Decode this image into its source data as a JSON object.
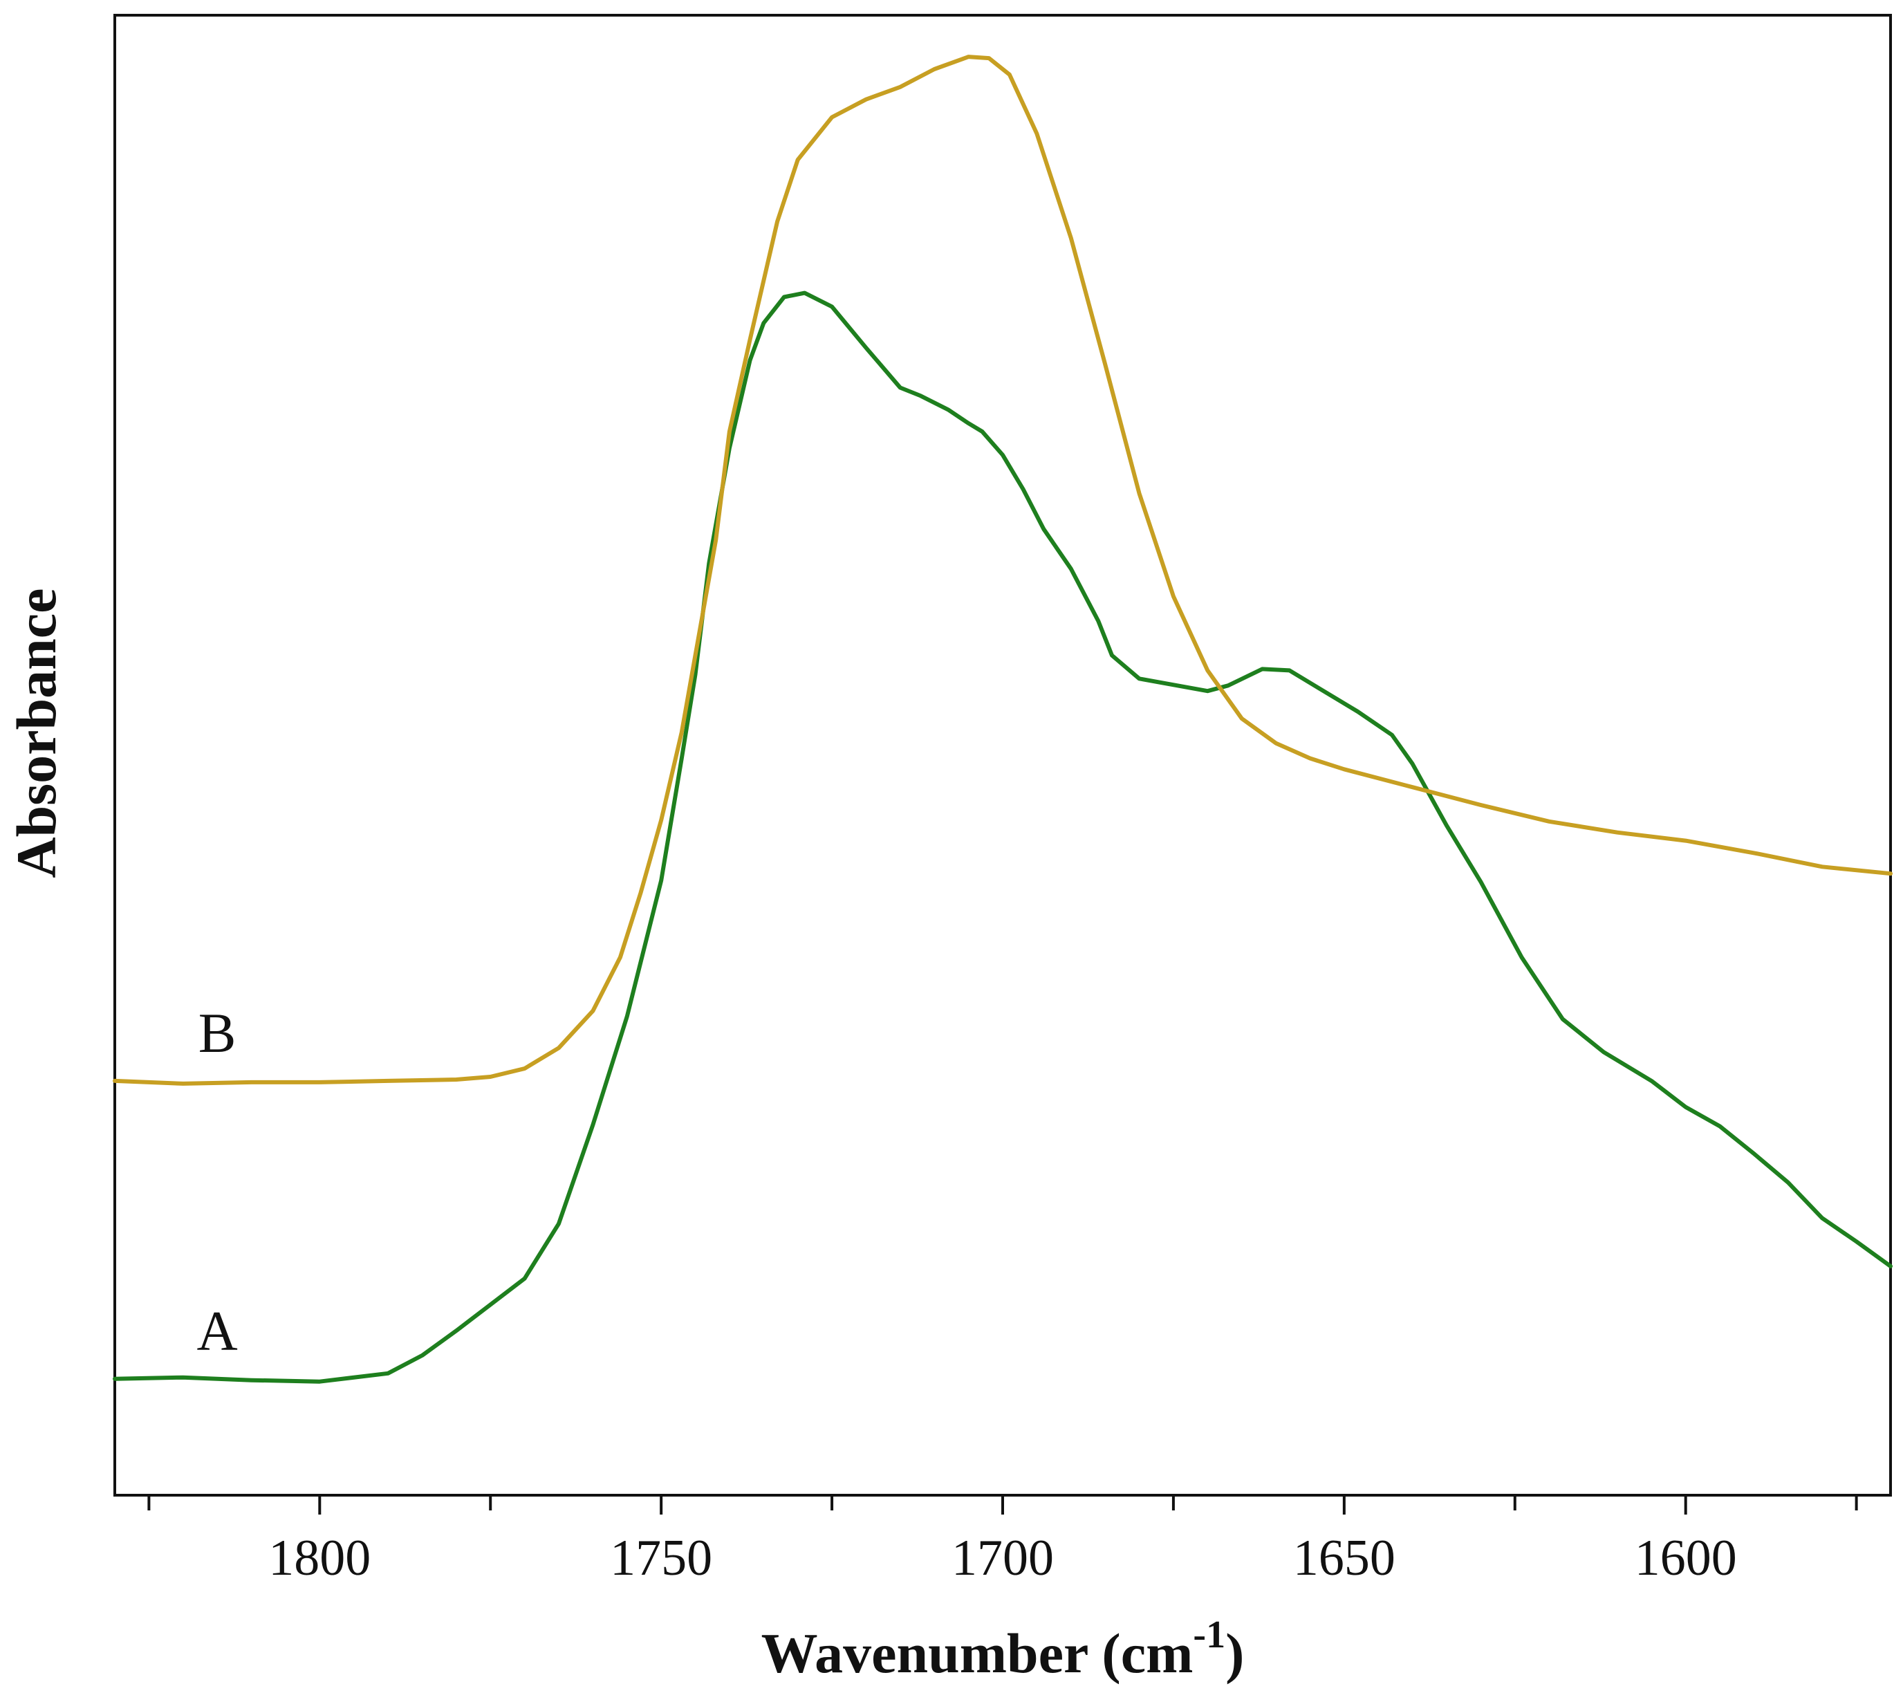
{
  "chart_data": {
    "type": "line",
    "xlabel": "Wavenumber (cm",
    "xlabel_superscript": "-1",
    "xlabel_suffix": ")",
    "ylabel": "Absorbance",
    "x_reversed": true,
    "xlim": [
      1830,
      1570
    ],
    "ylim": [
      0,
      1
    ],
    "y_ticks_labeled": false,
    "x_major_ticks": [
      1800,
      1750,
      1700,
      1650,
      1600
    ],
    "x_minor_ticks": [
      1825,
      1775,
      1725,
      1675,
      1625,
      1575
    ],
    "x_tick_labels": [
      "1800",
      "1750",
      "1700",
      "1650",
      "1600"
    ],
    "grid": false,
    "legend": "none",
    "series": [
      {
        "name": "A",
        "color": "#1e7f1e",
        "points": [
          [
            1830,
            0.046
          ],
          [
            1820,
            0.047
          ],
          [
            1810,
            0.045
          ],
          [
            1800,
            0.044
          ],
          [
            1790,
            0.05
          ],
          [
            1785,
            0.063
          ],
          [
            1780,
            0.081
          ],
          [
            1775,
            0.1
          ],
          [
            1770,
            0.119
          ],
          [
            1765,
            0.159
          ],
          [
            1760,
            0.231
          ],
          [
            1755,
            0.31
          ],
          [
            1750,
            0.409
          ],
          [
            1747,
            0.498
          ],
          [
            1745,
            0.559
          ],
          [
            1743,
            0.64
          ],
          [
            1740,
            0.724
          ],
          [
            1737,
            0.788
          ],
          [
            1735,
            0.815
          ],
          [
            1732,
            0.834
          ],
          [
            1729,
            0.837
          ],
          [
            1725,
            0.827
          ],
          [
            1720,
            0.797
          ],
          [
            1715,
            0.768
          ],
          [
            1712,
            0.762
          ],
          [
            1708,
            0.752
          ],
          [
            1705,
            0.742
          ],
          [
            1703,
            0.736
          ],
          [
            1700,
            0.719
          ],
          [
            1697,
            0.694
          ],
          [
            1694,
            0.665
          ],
          [
            1690,
            0.636
          ],
          [
            1686,
            0.598
          ],
          [
            1684,
            0.573
          ],
          [
            1680,
            0.556
          ],
          [
            1670,
            0.547
          ],
          [
            1667,
            0.551
          ],
          [
            1662,
            0.563
          ],
          [
            1658,
            0.562
          ],
          [
            1654,
            0.55
          ],
          [
            1648,
            0.532
          ],
          [
            1643,
            0.515
          ],
          [
            1640,
            0.494
          ],
          [
            1635,
            0.449
          ],
          [
            1630,
            0.408
          ],
          [
            1624,
            0.353
          ],
          [
            1618,
            0.308
          ],
          [
            1612,
            0.284
          ],
          [
            1605,
            0.263
          ],
          [
            1600,
            0.244
          ],
          [
            1595,
            0.23
          ],
          [
            1590,
            0.21
          ],
          [
            1585,
            0.189
          ],
          [
            1580,
            0.163
          ],
          [
            1575,
            0.146
          ],
          [
            1570,
            0.128
          ]
        ]
      },
      {
        "name": "B",
        "color": "#c79f22",
        "points": [
          [
            1830,
            0.263
          ],
          [
            1820,
            0.261
          ],
          [
            1810,
            0.262
          ],
          [
            1800,
            0.262
          ],
          [
            1790,
            0.263
          ],
          [
            1780,
            0.264
          ],
          [
            1775,
            0.266
          ],
          [
            1770,
            0.272
          ],
          [
            1765,
            0.287
          ],
          [
            1760,
            0.314
          ],
          [
            1756,
            0.353
          ],
          [
            1753,
            0.4
          ],
          [
            1750,
            0.453
          ],
          [
            1747,
            0.517
          ],
          [
            1745,
            0.573
          ],
          [
            1742,
            0.657
          ],
          [
            1740,
            0.736
          ],
          [
            1737,
            0.803
          ],
          [
            1733,
            0.889
          ],
          [
            1730,
            0.934
          ],
          [
            1725,
            0.965
          ],
          [
            1720,
            0.978
          ],
          [
            1715,
            0.987
          ],
          [
            1710,
            1.0
          ],
          [
            1705,
            1.009
          ],
          [
            1702,
            1.008
          ],
          [
            1699,
            0.996
          ],
          [
            1695,
            0.953
          ],
          [
            1690,
            0.877
          ],
          [
            1685,
            0.785
          ],
          [
            1680,
            0.691
          ],
          [
            1675,
            0.616
          ],
          [
            1670,
            0.562
          ],
          [
            1665,
            0.527
          ],
          [
            1660,
            0.509
          ],
          [
            1655,
            0.498
          ],
          [
            1650,
            0.49
          ],
          [
            1640,
            0.477
          ],
          [
            1630,
            0.464
          ],
          [
            1620,
            0.452
          ],
          [
            1610,
            0.444
          ],
          [
            1600,
            0.438
          ],
          [
            1590,
            0.429
          ],
          [
            1580,
            0.419
          ],
          [
            1570,
            0.414
          ]
        ]
      }
    ]
  }
}
